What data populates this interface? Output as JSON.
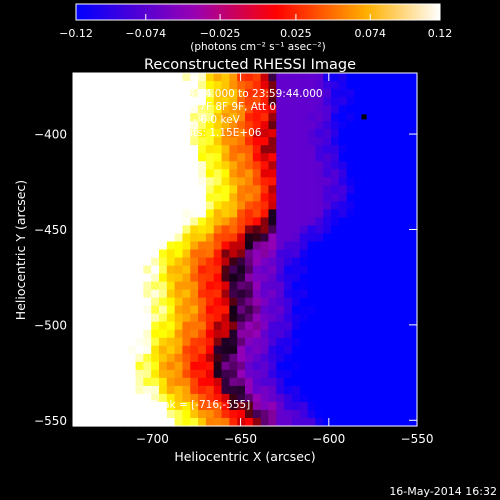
{
  "chart_data": {
    "type": "heatmap",
    "title": "Reconstructed RHESSI Image",
    "xlabel": "Heliocentric X (arcsec)",
    "ylabel": "Heliocentric Y (arcsec)",
    "xlim": [
      -745,
      -550
    ],
    "ylim": [
      -553,
      -368
    ],
    "x_ticks": [
      -700,
      -650,
      -600,
      -550
    ],
    "y_ticks": [
      -400,
      -450,
      -500,
      -550
    ],
    "colorbar": {
      "range": [
        -0.12,
        0.12
      ],
      "ticks": [
        -0.12,
        -0.074,
        -0.025,
        0.025,
        0.074,
        0.12
      ],
      "tick_labels": [
        "-0.12",
        "-0.074",
        "-0.025",
        "0.025",
        "0.074",
        "0.12"
      ],
      "unit_label": "(photons cm⁻² s⁻¹ asec⁻²)",
      "colors": [
        "#0000ff",
        "#ff0000",
        "#ffff00",
        "#ffffff"
      ]
    },
    "annotations": [
      "31-Aug-2012 23:43:44.000 to 23:59:44.000",
      "Detectors: 3F 5F 6F 7F 8F 9F, Att 0",
      "Energy Range: 3.0 - 6.0 keV",
      "Clean     Total counts: 1.15E+06"
    ],
    "peak_label": "Position of Peak = [-716,-555]",
    "peak": [
      -716,
      -555
    ],
    "marker": [
      -580,
      -391
    ],
    "footer": "16-May-2014 16:32"
  }
}
